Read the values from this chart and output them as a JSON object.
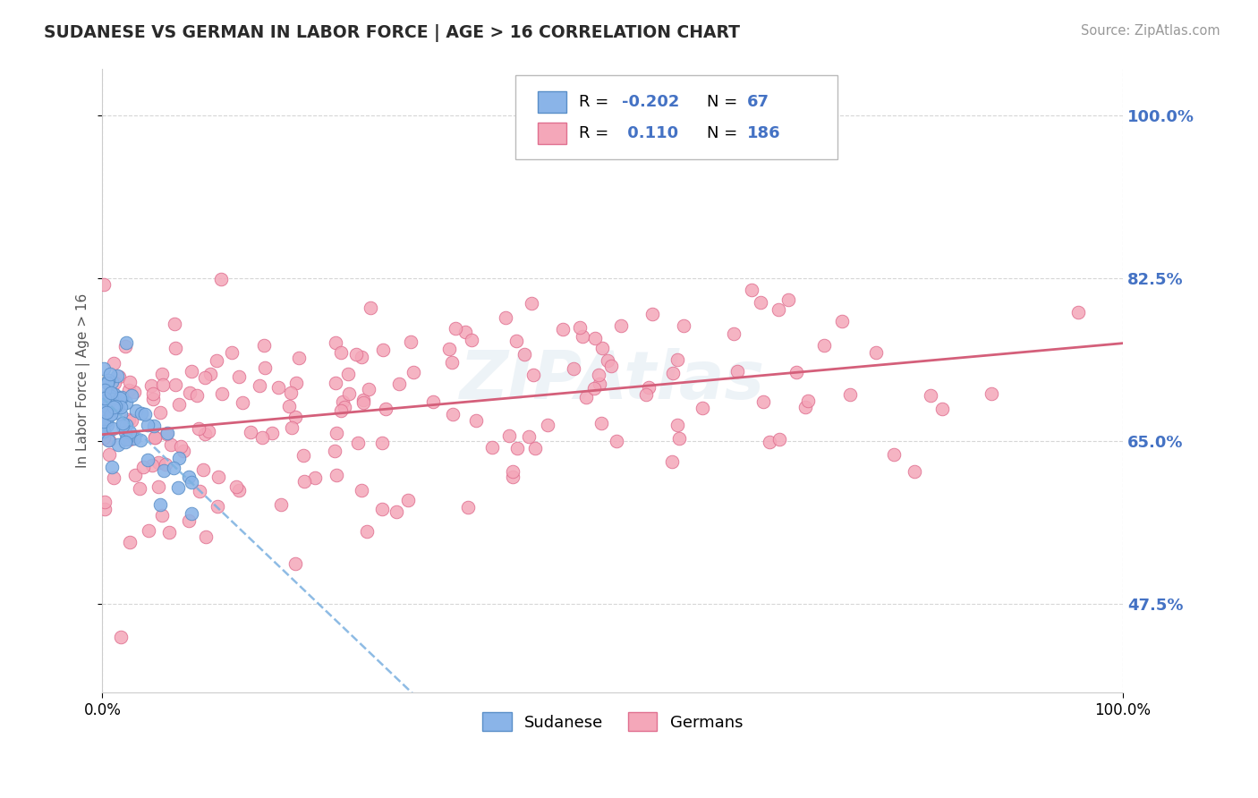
{
  "title": "SUDANESE VS GERMAN IN LABOR FORCE | AGE > 16 CORRELATION CHART",
  "source_text": "Source: ZipAtlas.com",
  "ylabel": "In Labor Force | Age > 16",
  "xlim": [
    0.0,
    1.0
  ],
  "ylim": [
    0.38,
    1.05
  ],
  "ytick_labels_right": [
    "47.5%",
    "65.0%",
    "82.5%",
    "100.0%"
  ],
  "ytick_positions_right": [
    0.475,
    0.65,
    0.825,
    1.0
  ],
  "sudanese_color": "#8ab4e8",
  "german_color": "#f4a7b9",
  "sudanese_edge": "#5a8fc8",
  "german_edge": "#e07090",
  "trend_sudanese_color": "#7ab0e0",
  "trend_german_color": "#d45f7a",
  "R_sudanese": -0.202,
  "N_sudanese": 67,
  "R_german": 0.11,
  "N_german": 186,
  "legend_label_sudanese": "Sudanese",
  "legend_label_german": "Germans",
  "watermark": "ZIPAtlas",
  "grid_color": "#cccccc",
  "background_color": "#ffffff",
  "blue_text": "#4472c4"
}
